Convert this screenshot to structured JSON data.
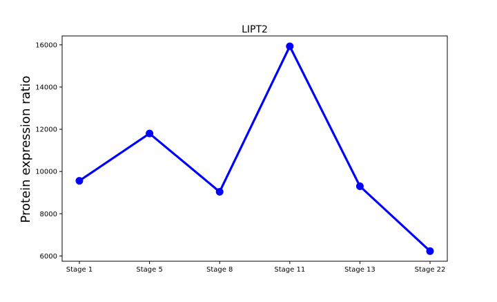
{
  "chart_data": {
    "type": "line",
    "title": "LIPT2",
    "xlabel": "",
    "ylabel": "Protein expression ratio",
    "categories": [
      "Stage 1",
      "Stage 5",
      "Stage 8",
      "Stage 11",
      "Stage 13",
      "Stage 22"
    ],
    "series": [
      {
        "values": [
          9560,
          11800,
          9040,
          15930,
          9300,
          6230
        ],
        "color": "#0000ff"
      }
    ],
    "ylim": [
      5750,
      16420
    ],
    "yticks": [
      6000,
      8000,
      10000,
      12000,
      14000,
      16000
    ],
    "grid": false,
    "legend": "none"
  }
}
